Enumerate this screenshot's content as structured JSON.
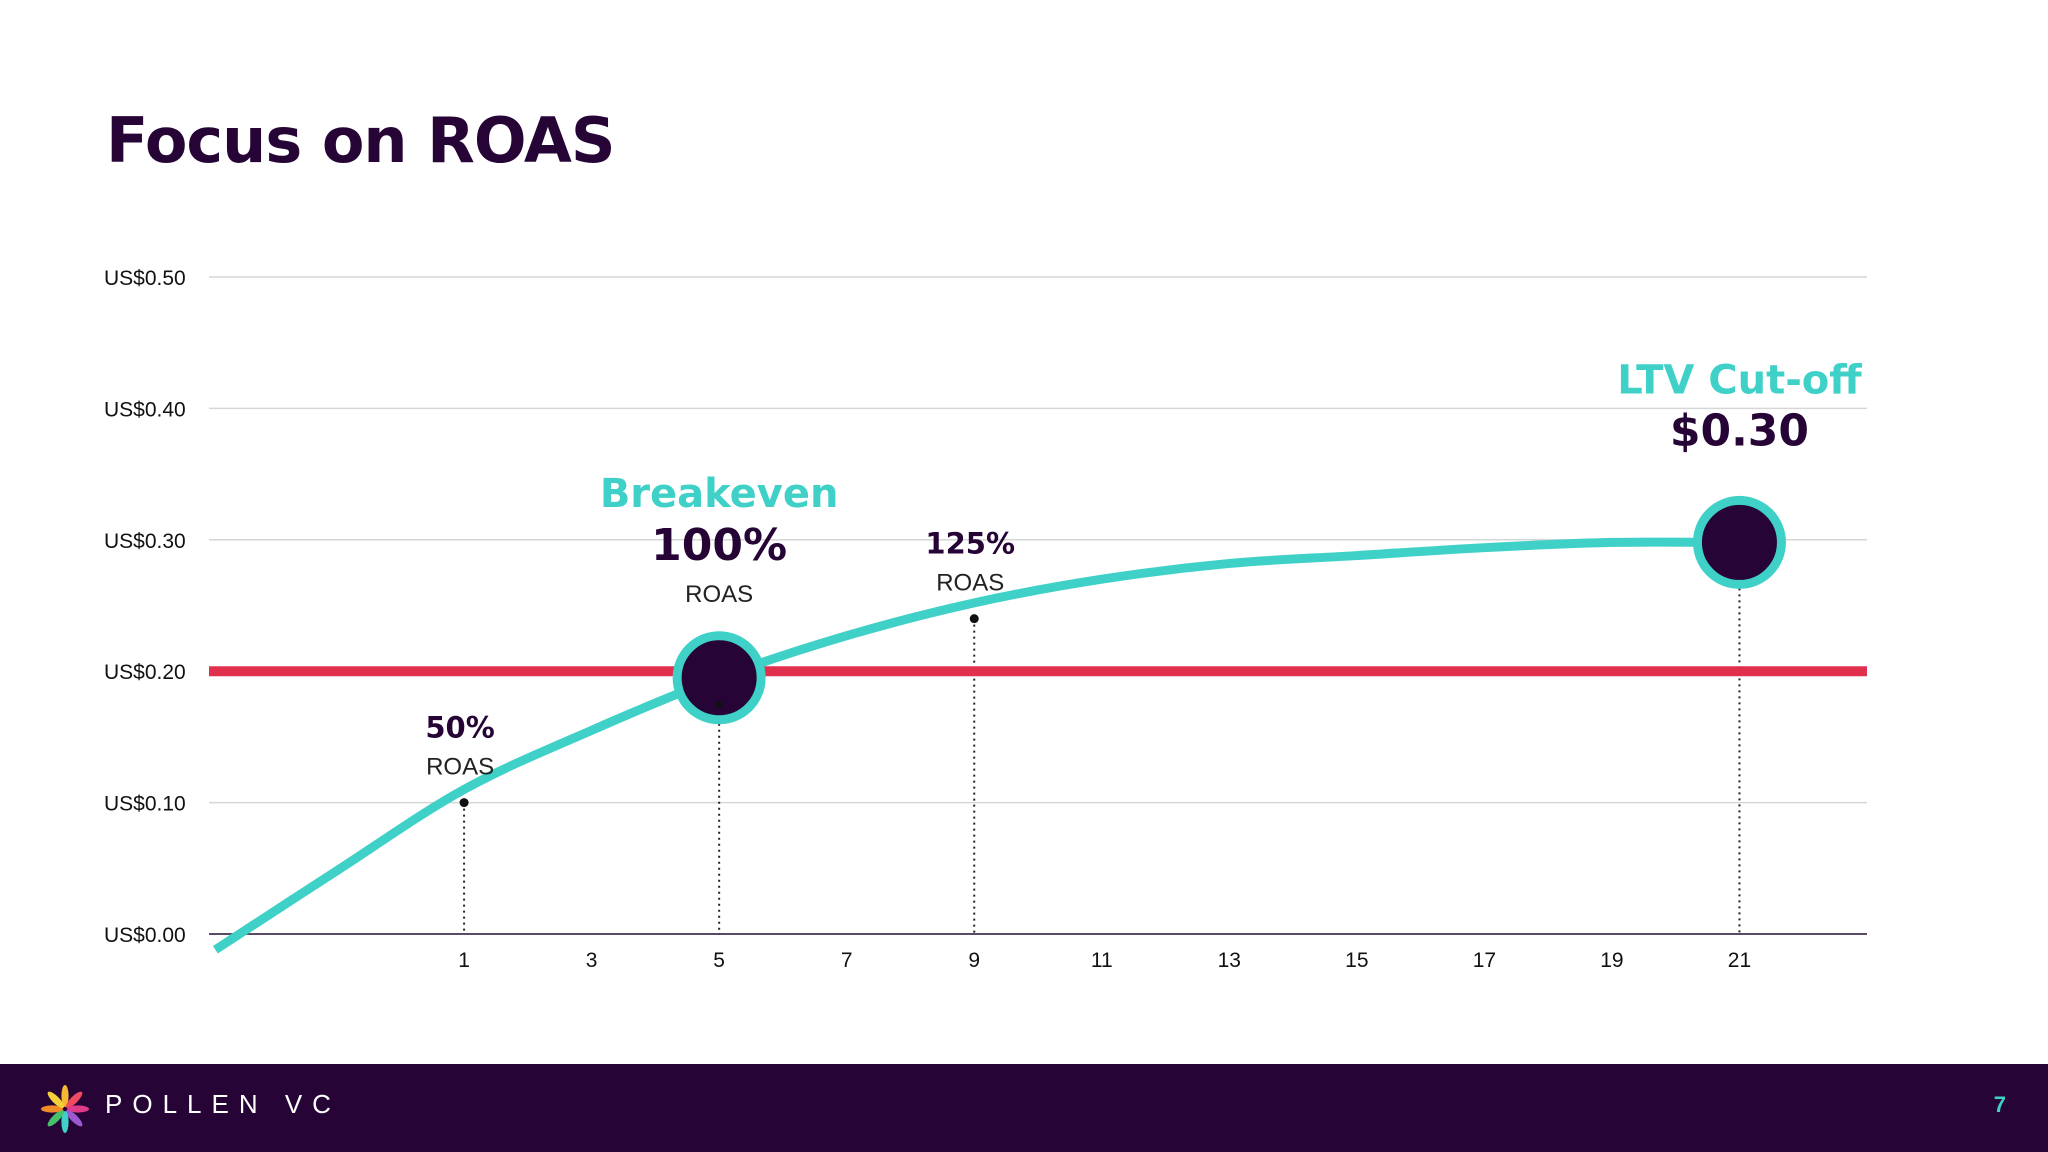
{
  "slide": {
    "title": "Focus on ROAS",
    "page_number": "7"
  },
  "footer": {
    "brand": "POLLEN VC",
    "logo_icon": "pollen-star-logo-icon"
  },
  "colors": {
    "curve": "#3fd1c8",
    "threshold": "#e0304e",
    "dark": "#260536",
    "grid": "#d6d6d6",
    "dotted": "#222222"
  },
  "chart_data": {
    "type": "line",
    "title": "",
    "xlabel": "",
    "ylabel": "",
    "xlim": [
      -3,
      23
    ],
    "ylim": [
      0,
      0.5
    ],
    "x_ticks": [
      1,
      3,
      5,
      7,
      9,
      11,
      13,
      15,
      17,
      19,
      21
    ],
    "y_ticks": [
      0,
      0.1,
      0.2,
      0.3,
      0.4,
      0.5
    ],
    "y_tick_labels": [
      "US$0.00",
      "US$0.10",
      "US$0.20",
      "US$0.30",
      "US$0.40",
      "US$0.50"
    ],
    "grid": true,
    "series": [
      {
        "name": "",
        "x": [
          -2.9,
          -1,
          1,
          3,
          5,
          7,
          9,
          11,
          13,
          15,
          17,
          19,
          21
        ],
        "y": [
          -0.012,
          0.048,
          0.11,
          0.155,
          0.195,
          0.227,
          0.252,
          0.27,
          0.282,
          0.288,
          0.294,
          0.298,
          0.298
        ]
      }
    ],
    "threshold": {
      "y": 0.2,
      "label": ""
    },
    "markers": [
      {
        "x": 1,
        "y": 0.1,
        "kind": "dot",
        "label": "50%",
        "sublabel": "ROAS",
        "heading": ""
      },
      {
        "x": 5,
        "y": 0.195,
        "kind": "circle",
        "label": "100%",
        "sublabel": "ROAS",
        "heading": "Breakeven"
      },
      {
        "x": 9,
        "y": 0.24,
        "kind": "dot",
        "label": "125%",
        "sublabel": "ROAS",
        "heading": ""
      },
      {
        "x": 21,
        "y": 0.298,
        "kind": "circle",
        "label": "$0.30",
        "sublabel": "",
        "heading": "LTV Cut-off"
      }
    ]
  }
}
